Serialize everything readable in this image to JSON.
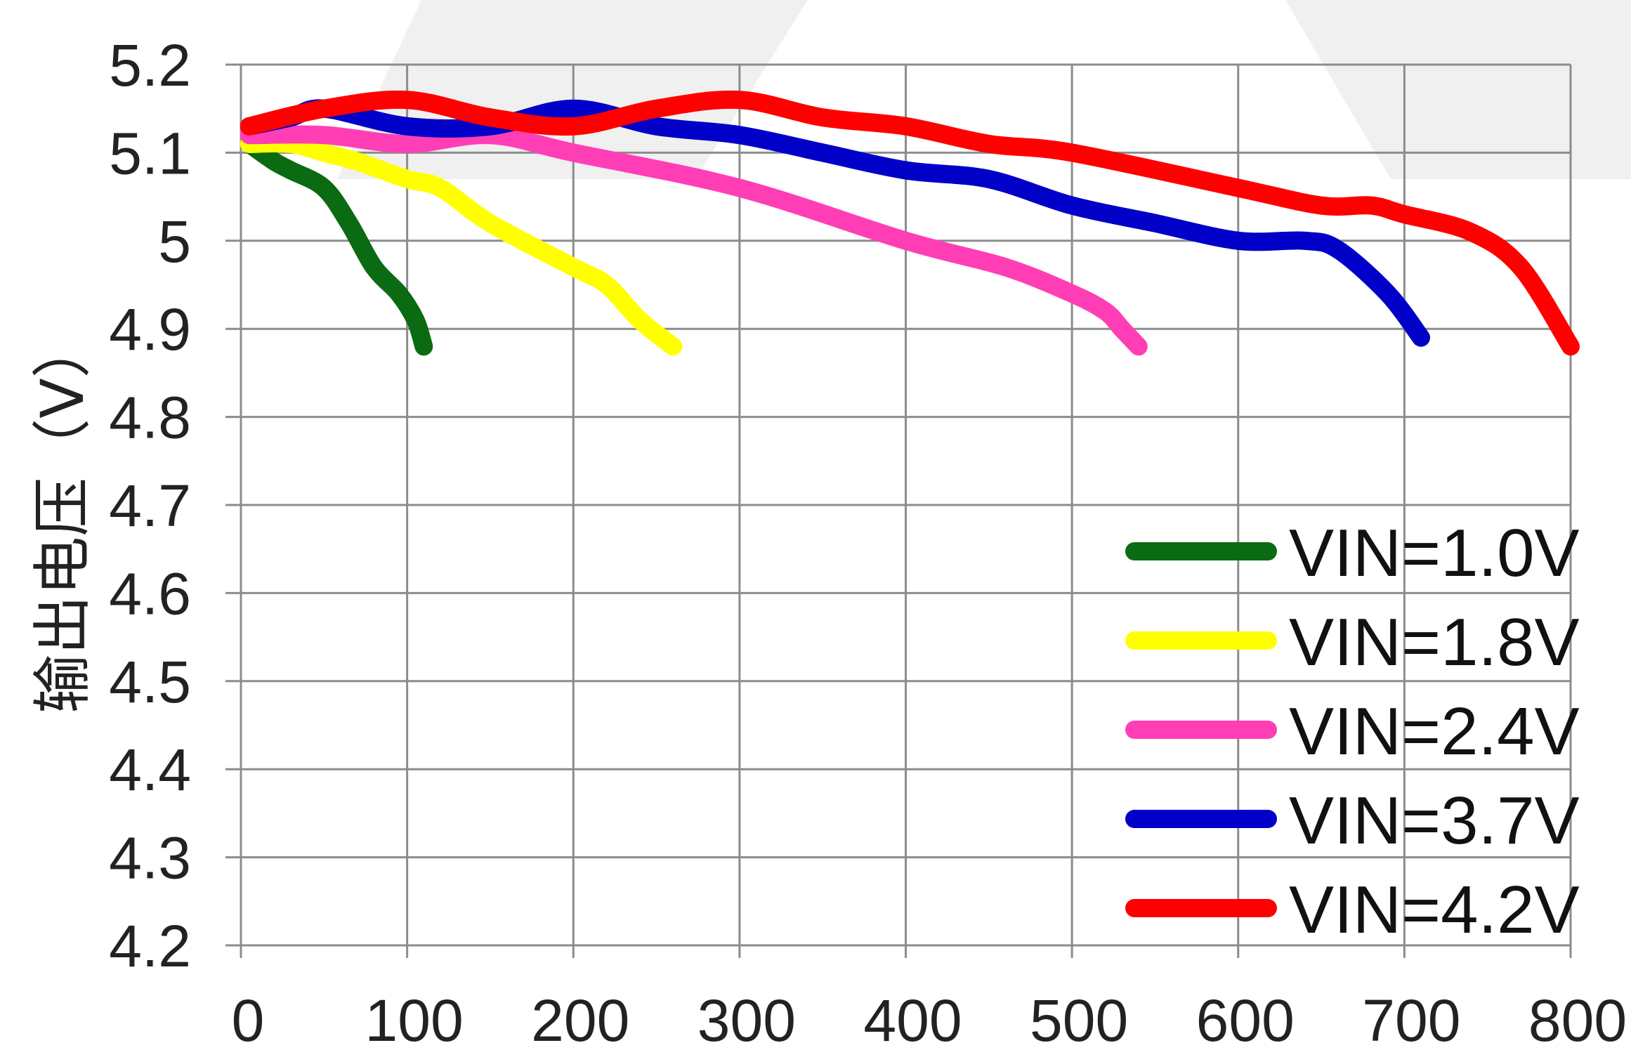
{
  "chart_data": {
    "type": "line",
    "title": "",
    "xlabel": "",
    "ylabel": "输出电压（V）",
    "xlim": [
      0,
      800
    ],
    "ylim": [
      4.2,
      5.2
    ],
    "x_ticks": [
      "0",
      "100",
      "200",
      "300",
      "400",
      "500",
      "600",
      "700",
      "800"
    ],
    "y_ticks": [
      "5.2",
      "5.1",
      "5",
      "4.9",
      "4.8",
      "4.7",
      "4.6",
      "4.5",
      "4.4",
      "4.3",
      "4.2"
    ],
    "grid": true,
    "legend_position": "bottom-right",
    "series": [
      {
        "name": "VIN=1.0V",
        "color": "#0a6b12",
        "points": [
          [
            5,
            5.11
          ],
          [
            20,
            5.09
          ],
          [
            30,
            5.08
          ],
          [
            50,
            5.06
          ],
          [
            65,
            5.02
          ],
          [
            80,
            4.97
          ],
          [
            95,
            4.94
          ],
          [
            105,
            4.91
          ],
          [
            110,
            4.88
          ]
        ]
      },
      {
        "name": "VIN=1.8V",
        "color": "#ffff00",
        "points": [
          [
            5,
            5.11
          ],
          [
            30,
            5.11
          ],
          [
            50,
            5.1
          ],
          [
            70,
            5.09
          ],
          [
            100,
            5.07
          ],
          [
            120,
            5.06
          ],
          [
            150,
            5.02
          ],
          [
            200,
            4.97
          ],
          [
            220,
            4.95
          ],
          [
            240,
            4.91
          ],
          [
            260,
            4.88
          ]
        ]
      },
      {
        "name": "VIN=2.4V",
        "color": "#ff3eb5",
        "points": [
          [
            5,
            5.12
          ],
          [
            50,
            5.12
          ],
          [
            100,
            5.11
          ],
          [
            150,
            5.12
          ],
          [
            200,
            5.1
          ],
          [
            300,
            5.06
          ],
          [
            400,
            5
          ],
          [
            460,
            4.97
          ],
          [
            500,
            4.94
          ],
          [
            520,
            4.92
          ],
          [
            530,
            4.9
          ],
          [
            540,
            4.88
          ]
        ]
      },
      {
        "name": "VIN=3.7V",
        "color": "#0000c8",
        "points": [
          [
            5,
            5.13
          ],
          [
            30,
            5.14
          ],
          [
            50,
            5.15
          ],
          [
            100,
            5.13
          ],
          [
            150,
            5.13
          ],
          [
            200,
            5.15
          ],
          [
            250,
            5.13
          ],
          [
            300,
            5.12
          ],
          [
            350,
            5.1
          ],
          [
            400,
            5.08
          ],
          [
            450,
            5.07
          ],
          [
            500,
            5.04
          ],
          [
            550,
            5.02
          ],
          [
            600,
            5
          ],
          [
            640,
            5
          ],
          [
            660,
            4.99
          ],
          [
            690,
            4.94
          ],
          [
            710,
            4.89
          ]
        ]
      },
      {
        "name": "VIN=4.2V",
        "color": "#ff0000",
        "points": [
          [
            5,
            5.13
          ],
          [
            50,
            5.15
          ],
          [
            100,
            5.16
          ],
          [
            150,
            5.14
          ],
          [
            200,
            5.13
          ],
          [
            250,
            5.15
          ],
          [
            300,
            5.16
          ],
          [
            350,
            5.14
          ],
          [
            400,
            5.13
          ],
          [
            450,
            5.11
          ],
          [
            500,
            5.1
          ],
          [
            600,
            5.06
          ],
          [
            650,
            5.04
          ],
          [
            680,
            5.04
          ],
          [
            700,
            5.03
          ],
          [
            740,
            5.01
          ],
          [
            770,
            4.97
          ],
          [
            800,
            4.88
          ]
        ]
      }
    ]
  }
}
